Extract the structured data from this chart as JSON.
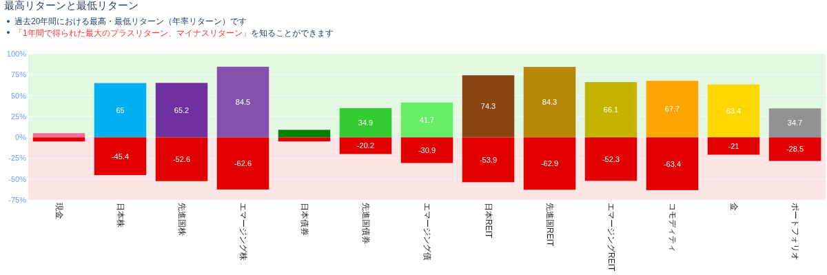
{
  "chart_data": {
    "type": "bar",
    "title": "最高リターンと最低リターン",
    "annotations": [
      "過去20年間における最高・最低リターン（年率リターン）です",
      "「1年間で得られた最大のプラスリターン、マイナスリターン」",
      "を知ることができます"
    ],
    "categories": [
      "現金",
      "日本株",
      "先進国株",
      "エマージング株",
      "日本債券",
      "先進国債券",
      "エマージング債",
      "日本REIT",
      "先進国REIT",
      "エマージングREIT",
      "コモディティ",
      "金",
      "ポートフォリオ"
    ],
    "stacked": true,
    "series": [
      {
        "colors": [
          "#ff6b98",
          "#00b0f0",
          "#7030a0",
          "#8452ae",
          "#008000",
          "#33cc33",
          "#66ee66",
          "#8b4513",
          "#b8860b",
          "#c4b400",
          "#ffa500",
          "#ffd700",
          "#939393"
        ],
        "values": [
          5,
          65,
          65.2,
          84.5,
          9,
          34.9,
          41.7,
          74.3,
          84.3,
          66.1,
          67.7,
          63.4,
          34.7
        ],
        "value_labels": [
          null,
          "65",
          "65.2",
          "84.5",
          null,
          "34.9",
          "41.7",
          "74.3",
          "84.3",
          "66.1",
          "67.7",
          "63.4",
          "34.7"
        ]
      },
      {
        "color": "#e00000",
        "values": [
          -5,
          -45.4,
          -52.6,
          -62.6,
          -5,
          -20.2,
          -30.9,
          -53.9,
          -62.9,
          -52.3,
          -63.4,
          -21,
          -28.5
        ],
        "value_labels": [
          null,
          "-45.4",
          "-52.6",
          "-62.6",
          null,
          "-20.2",
          "-30.9",
          "-53.9",
          "-62.9",
          "-52.3",
          "-63.4",
          "-21",
          "-28.5"
        ]
      }
    ],
    "ylim": [
      -75,
      100
    ],
    "yticks": [
      {
        "value": -75,
        "label": "-75%"
      },
      {
        "value": -50,
        "label": "-50%"
      },
      {
        "value": -25,
        "label": "-25%"
      },
      {
        "value": 0,
        "label": "0%"
      },
      {
        "value": 25,
        "label": "25%"
      },
      {
        "value": 50,
        "label": "50%"
      },
      {
        "value": 75,
        "label": "75%"
      },
      {
        "value": 100,
        "label": "100%"
      }
    ],
    "grid": "y",
    "bands": [
      {
        "axis": "y",
        "from": 0,
        "to": 100,
        "color": "#e3f8e3"
      },
      {
        "axis": "y",
        "from": -75,
        "to": 0,
        "color": "#fae4e4"
      }
    ]
  }
}
